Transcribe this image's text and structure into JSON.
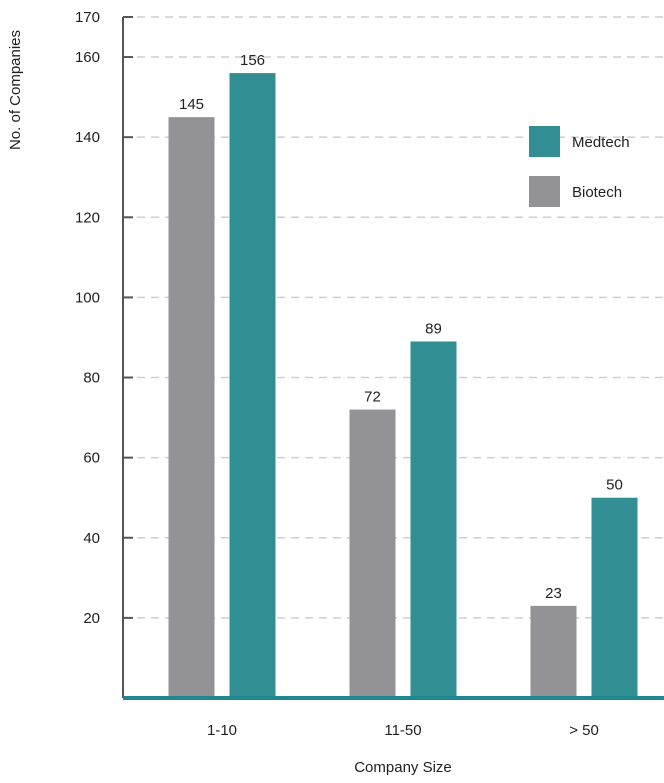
{
  "chart_data": {
    "type": "bar",
    "title": "",
    "xlabel": "Company Size",
    "ylabel": "No. of Companies",
    "categories": [
      "1-10",
      "11-50",
      "> 50"
    ],
    "series": [
      {
        "name": "Biotech",
        "values": [
          145,
          72,
          23
        ],
        "color": "#939397"
      },
      {
        "name": "Medtech",
        "values": [
          156,
          89,
          50
        ],
        "color": "#318f93"
      }
    ],
    "ylim": [
      0,
      170
    ],
    "yticks": [
      20,
      40,
      60,
      80,
      100,
      120,
      140,
      160,
      170
    ],
    "grid": true,
    "legend_position": "top-right",
    "legend_order": [
      "Medtech",
      "Biotech"
    ],
    "axis_color": "#555555",
    "baseline_color": "#1e8a8e"
  }
}
